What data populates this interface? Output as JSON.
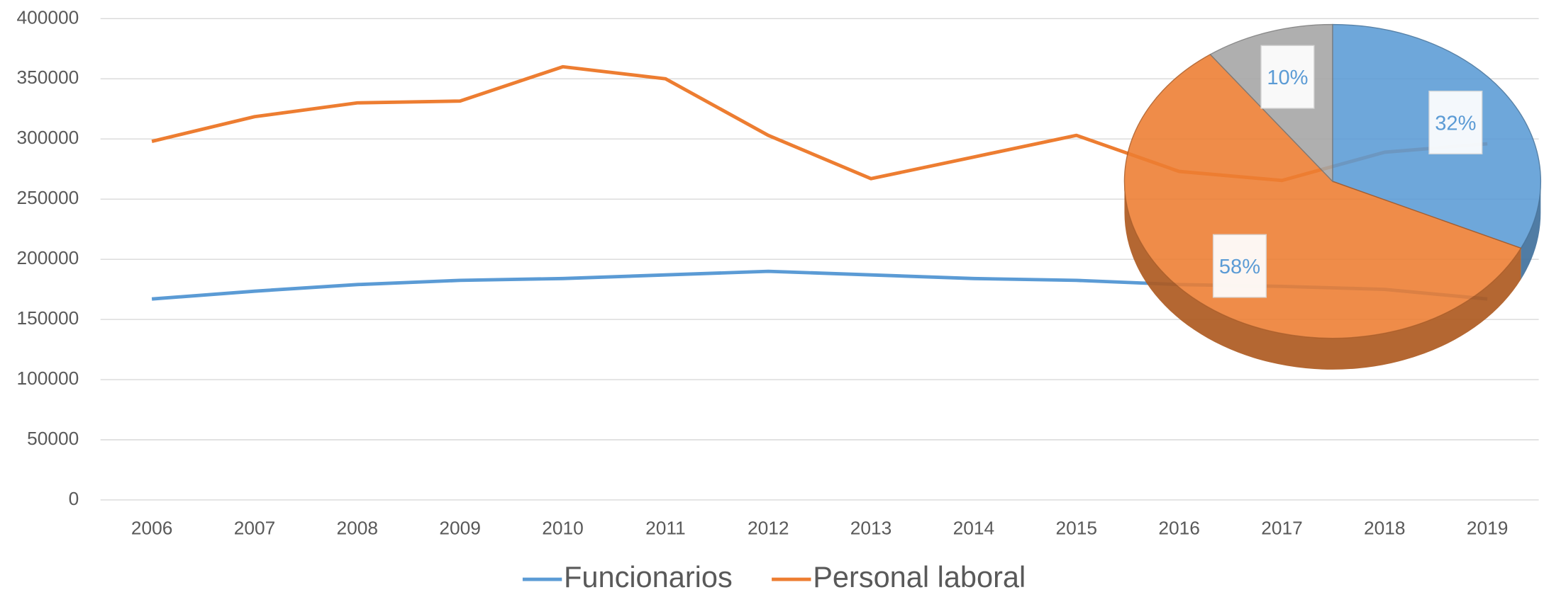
{
  "chart_data": [
    {
      "type": "line",
      "categories": [
        "2006",
        "2007",
        "2008",
        "2009",
        "2010",
        "2011",
        "2012",
        "2013",
        "2014",
        "2015",
        "2016",
        "2017",
        "2018",
        "2019"
      ],
      "series": [
        {
          "name": "Funcionarios",
          "color": "#5b9bd5",
          "values": [
            167000,
            173500,
            179000,
            182500,
            184000,
            187000,
            190000,
            187000,
            184000,
            182500,
            179000,
            177500,
            175000,
            167000
          ]
        },
        {
          "name": "Personal laboral",
          "color": "#ed7d31",
          "values": [
            298000,
            318500,
            330000,
            331500,
            360000,
            350000,
            303000,
            267000,
            285000,
            303000,
            273000,
            265500,
            289000,
            296000
          ]
        }
      ],
      "ylim": [
        0,
        400000
      ],
      "yticks": [
        0,
        50000,
        100000,
        150000,
        200000,
        250000,
        300000,
        350000,
        400000
      ],
      "grid": true,
      "legend": "bottom"
    },
    {
      "type": "pie",
      "values": [
        32,
        58,
        10
      ],
      "value_labels": [
        "32%",
        "58%",
        "10%"
      ],
      "colors": [
        "#5b9bd5",
        "#ed7d31",
        "#a5a5a5"
      ]
    }
  ]
}
